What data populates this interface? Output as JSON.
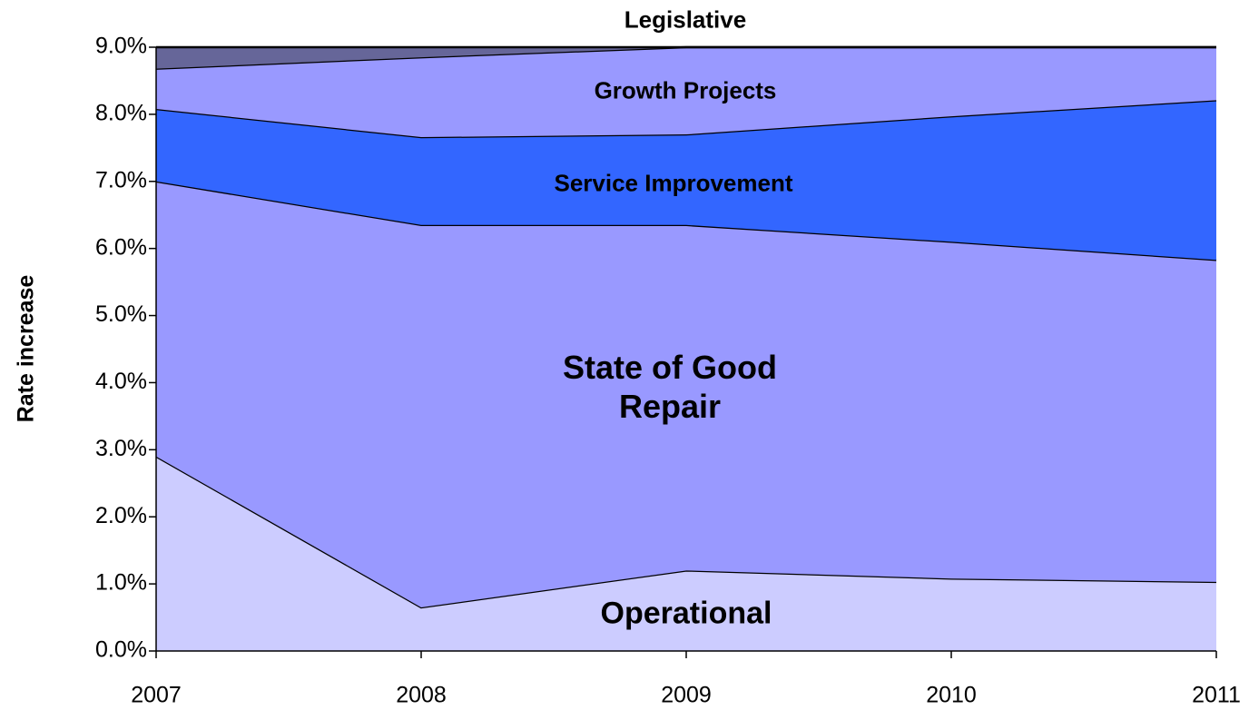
{
  "chart_data": {
    "type": "stacked_area",
    "y_label": "Rate increase",
    "categories": [
      "2007",
      "2008",
      "2009",
      "2010",
      "2011"
    ],
    "series": [
      {
        "name": "Operational",
        "color": "#ccccff",
        "values": [
          2.9,
          0.65,
          1.2,
          1.08,
          1.03
        ]
      },
      {
        "name": "State of Good Repair",
        "color": "#9999ff",
        "values": [
          4.1,
          5.7,
          5.15,
          5.02,
          4.8
        ]
      },
      {
        "name": "Service Improvement",
        "color": "#3366ff",
        "values": [
          1.08,
          1.31,
          1.35,
          1.87,
          2.38
        ]
      },
      {
        "name": "Growth Projects",
        "color": "#9999ff",
        "values": [
          0.6,
          1.19,
          1.3,
          1.03,
          0.79
        ]
      },
      {
        "name": "Legislative",
        "color": "#666699",
        "values": [
          0.32,
          0.15,
          0,
          0,
          0
        ]
      }
    ],
    "ylim": [
      0,
      9
    ],
    "yticks": [
      {
        "value": 0,
        "label": "0.0%"
      },
      {
        "value": 1,
        "label": "1.0%"
      },
      {
        "value": 2,
        "label": "2.0%"
      },
      {
        "value": 3,
        "label": "3.0%"
      },
      {
        "value": 4,
        "label": "4.0%"
      },
      {
        "value": 5,
        "label": "5.0%"
      },
      {
        "value": 6,
        "label": "6.0%"
      },
      {
        "value": 7,
        "label": "7.0%"
      },
      {
        "value": 8,
        "label": "8.0%"
      },
      {
        "value": 9,
        "label": "9.0%"
      }
    ],
    "grid": false
  }
}
